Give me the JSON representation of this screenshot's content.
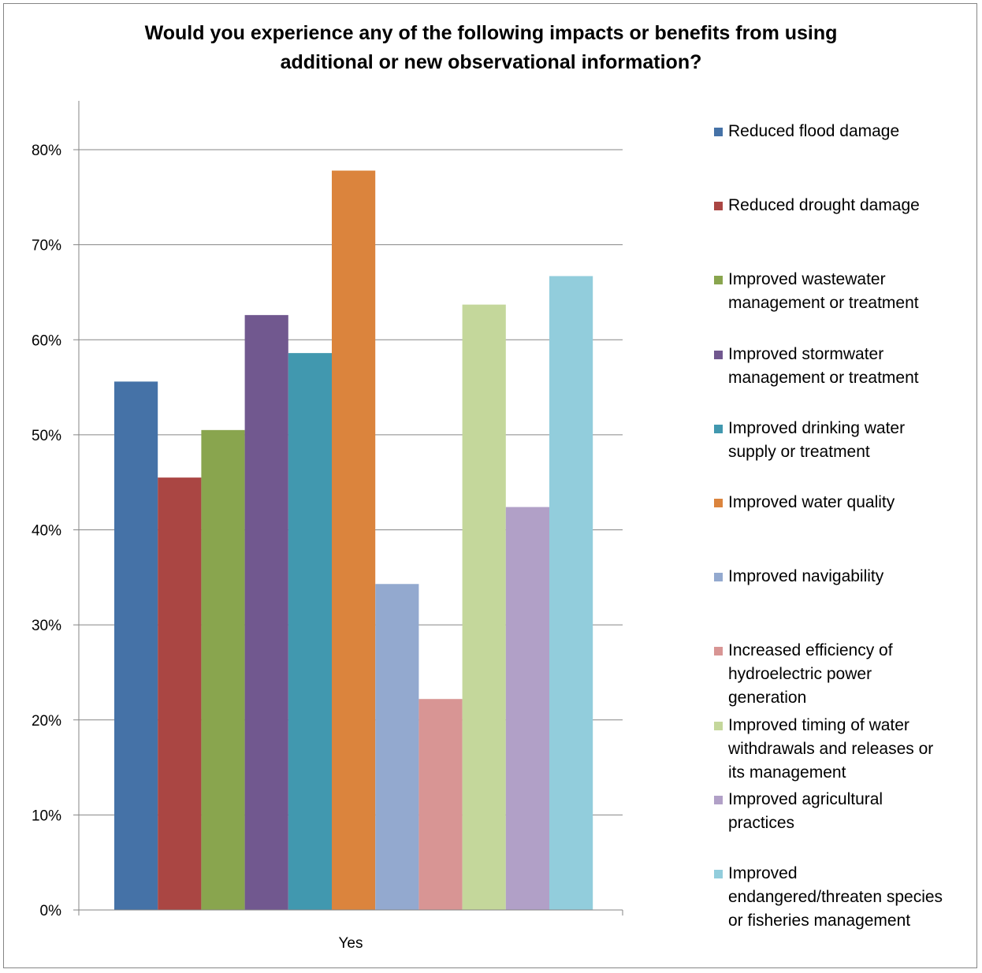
{
  "chart_data": {
    "type": "bar",
    "title": "Would you experience any of the following impacts or benefits from using additional or new observational information?",
    "title_lines": [
      "Would you experience any of the following impacts or benefits from using",
      "additional or new observational information?"
    ],
    "categories": [
      "Yes"
    ],
    "xlabel": "",
    "ylabel": "",
    "ylim": [
      0,
      0.8
    ],
    "yticks": [
      "0%",
      "10%",
      "20%",
      "30%",
      "40%",
      "50%",
      "60%",
      "70%",
      "80%"
    ],
    "grid": true,
    "legend_position": "right",
    "series": [
      {
        "name": "Reduced flood damage",
        "legend_label": "Reduced flood damage",
        "color": "#4572A7",
        "values": [
          0.556
        ]
      },
      {
        "name": "Reduced drought damage",
        "legend_label": "Reduced drought damage",
        "color": "#AA4643",
        "values": [
          0.455
        ]
      },
      {
        "name": "Improved wastewater management or treatment",
        "legend_label": "Improved wastewater\nmanagement  or treatment",
        "color": "#89A54E",
        "values": [
          0.505
        ]
      },
      {
        "name": "Improved stormwater management or treatment",
        "legend_label": "Improved stormwater\nmanagement  or treatment",
        "color": "#71588F",
        "values": [
          0.626
        ]
      },
      {
        "name": "Improved drinking water supply or treatment",
        "legend_label": "Improved drinking water\nsupply or treatment",
        "color": "#4198AF",
        "values": [
          0.586
        ]
      },
      {
        "name": "Improved water quality",
        "legend_label": "Improved water  quality",
        "color": "#DB843D",
        "values": [
          0.778
        ]
      },
      {
        "name": "Improved navigability",
        "legend_label": "Improved navigability",
        "color": "#93A9CF",
        "values": [
          0.343
        ]
      },
      {
        "name": "Increased efficiency of hydroelectric power generation",
        "legend_label": "Increased efficiency of\nhydroelectric power\ngeneration",
        "color": "#D89594",
        "values": [
          0.222
        ]
      },
      {
        "name": "Improved timing of water withdrawals and releases or its management",
        "legend_label": "Improved timing  of water\nwithdrawals  and  releases or\nits management",
        "color": "#C4D79B",
        "values": [
          0.637
        ]
      },
      {
        "name": "Improved agricultural practices",
        "legend_label": "Improved agricultural\npractices",
        "color": "#B1A0C7",
        "values": [
          0.424
        ]
      },
      {
        "name": "Improved endangered/threaten species or fisheries management",
        "legend_label": "Improved\nendangered/threaten species\nor fisheries management",
        "color": "#92CDDC",
        "values": [
          0.667
        ]
      }
    ]
  }
}
